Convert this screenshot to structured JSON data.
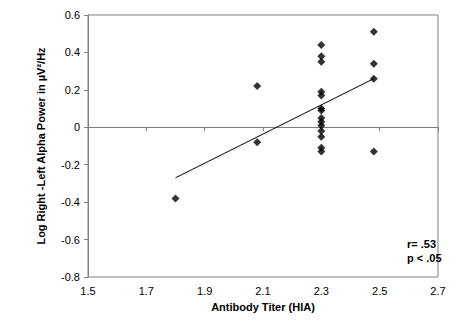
{
  "chart_data": {
    "type": "scatter",
    "x_label": "Antibody Titer (HIA)",
    "y_label": "Log Right -Left Alpha Power in µV²/Hz",
    "x": [
      1.8,
      2.08,
      2.08,
      2.3,
      2.3,
      2.3,
      2.3,
      2.3,
      2.3,
      2.3,
      2.3,
      2.3,
      2.3,
      2.3,
      2.3,
      2.3,
      2.3,
      2.48,
      2.48,
      2.48,
      2.48
    ],
    "values": [
      -0.38,
      0.22,
      -0.08,
      0.44,
      0.38,
      0.35,
      0.19,
      0.17,
      0.1,
      0.09,
      0.05,
      0.03,
      0.01,
      -0.02,
      -0.05,
      -0.11,
      -0.13,
      0.51,
      0.34,
      0.26,
      -0.13
    ],
    "color": "#000000",
    "marker": "diamond",
    "fit": {
      "x": [
        1.8,
        2.48
      ],
      "values": [
        -0.27,
        0.26
      ],
      "color": "#000000",
      "line_style": "solid"
    },
    "annotations": [
      "r= .53",
      "p < .05"
    ],
    "xlim": [
      1.5,
      2.7
    ],
    "xticks": [
      1.5,
      1.7,
      1.9,
      2.1,
      2.3,
      2.5,
      2.7
    ],
    "ylim": [
      -0.8,
      0.6
    ],
    "yticks": [
      -0.8,
      -0.6,
      -0.4,
      -0.2,
      0,
      0.2,
      0.4,
      0.6
    ],
    "grid": false
  }
}
